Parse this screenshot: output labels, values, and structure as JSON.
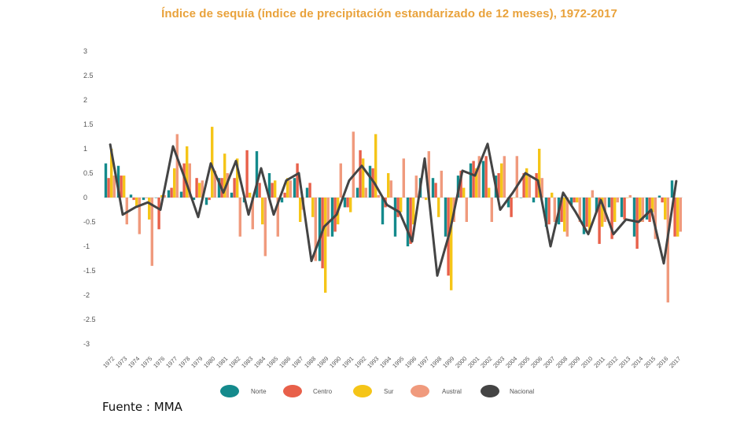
{
  "title": "Índice de sequía (índice de precipitación estandarizado de 12 meses), 1972-2017",
  "source_note": "Fuente : MMA",
  "chart_data": {
    "type": "bar",
    "title": "Índice de sequía (índice de precipitación estandarizado de 12 meses), 1972-2017",
    "xlabel": "",
    "ylabel": "",
    "ylim": [
      -3,
      3
    ],
    "yticks": [
      3,
      2.5,
      2,
      1.5,
      1,
      0.5,
      0,
      -0.5,
      -1,
      -1.5,
      -2,
      -2.5,
      -3
    ],
    "ytick_labels": [
      "3",
      "2.5",
      "2",
      "1.5",
      "1",
      "0.5",
      "0",
      "-0.5",
      "-1",
      "-1.5",
      "-2",
      "-2.5",
      "-3"
    ],
    "categories": [
      "1972",
      "1973",
      "1974",
      "1975",
      "1976",
      "1977",
      "1978",
      "1979",
      "1980",
      "1981",
      "1982",
      "1983",
      "1984",
      "1985",
      "1986",
      "1987",
      "1988",
      "1989",
      "1990",
      "1991",
      "1992",
      "1993",
      "1994",
      "1995",
      "1996",
      "1997",
      "1998",
      "1999",
      "2000",
      "2001",
      "2002",
      "2003",
      "2004",
      "2005",
      "2006",
      "2007",
      "2008",
      "2009",
      "2010",
      "2011",
      "2012",
      "2013",
      "2014",
      "2015",
      "2016",
      "2017"
    ],
    "legend_position": "bottom",
    "series": [
      {
        "name": "Norte",
        "type": "bar",
        "color": "#148a8c",
        "values": [
          0.7,
          0.65,
          0.06,
          -0.05,
          0.0,
          0.15,
          0.12,
          -0.05,
          -0.15,
          0.4,
          0.1,
          -0.1,
          0.95,
          0.5,
          -0.1,
          0.4,
          0.2,
          -1.3,
          -0.8,
          -0.2,
          0.2,
          0.65,
          -0.55,
          -0.8,
          -1.0,
          0.4,
          0.4,
          -0.8,
          0.45,
          0.7,
          0.75,
          0.45,
          -0.2,
          0.0,
          -0.1,
          -0.6,
          -0.55,
          -0.15,
          -0.75,
          -0.3,
          -0.2,
          -0.4,
          -0.8,
          -0.45,
          0.04,
          0.35
        ]
      },
      {
        "name": "Centro",
        "type": "bar",
        "color": "#e8604a",
        "values": [
          0.4,
          0.45,
          -0.05,
          0.0,
          -0.65,
          0.2,
          0.7,
          0.4,
          -0.05,
          0.4,
          0.4,
          0.97,
          0.3,
          0.3,
          0.1,
          0.7,
          0.3,
          -1.45,
          -0.7,
          -0.2,
          0.97,
          0.6,
          -0.2,
          -0.4,
          -0.95,
          0.0,
          0.3,
          -1.6,
          0.55,
          0.75,
          0.85,
          0.5,
          -0.4,
          0.5,
          0.5,
          -0.55,
          -0.5,
          -0.1,
          -0.6,
          -0.95,
          -0.85,
          -0.45,
          -1.05,
          -0.5,
          -0.1,
          -0.8
        ]
      },
      {
        "name": "Sur",
        "type": "bar",
        "color": "#f5c518",
        "values": [
          1.0,
          0.45,
          -0.2,
          -0.45,
          0.05,
          0.6,
          1.05,
          0.3,
          1.45,
          0.9,
          0.8,
          0.1,
          -0.55,
          0.35,
          0.4,
          -0.5,
          -0.4,
          -1.95,
          -0.55,
          -0.3,
          0.8,
          1.3,
          0.5,
          -0.3,
          -0.55,
          -0.05,
          -0.4,
          -1.9,
          0.2,
          0.6,
          0.2,
          0.7,
          0.0,
          0.6,
          1.0,
          0.1,
          -0.7,
          -0.1,
          -0.7,
          -0.6,
          -0.5,
          0.0,
          -0.5,
          -0.3,
          -0.45,
          -0.8
        ]
      },
      {
        "name": "Austral",
        "type": "bar",
        "color": "#f09a7d",
        "values": [
          0.45,
          -0.55,
          -0.75,
          -1.4,
          0.05,
          1.3,
          0.7,
          0.35,
          0.55,
          0.5,
          -0.8,
          -0.65,
          -1.2,
          -0.8,
          0.35,
          -0.25,
          -1.3,
          -0.8,
          0.7,
          1.35,
          0.2,
          0.05,
          0.35,
          0.8,
          0.45,
          0.95,
          0.55,
          -0.5,
          -0.5,
          0.85,
          -0.5,
          0.85,
          0.85,
          0.45,
          0.4,
          -0.5,
          -0.8,
          -0.5,
          0.15,
          -0.5,
          -0.1,
          0.05,
          -0.5,
          -0.85,
          -2.15,
          -0.7
        ]
      },
      {
        "name": "Nacional",
        "type": "line",
        "color": "#444444",
        "values": [
          1.1,
          -0.35,
          -0.2,
          -0.1,
          -0.25,
          1.05,
          0.35,
          -0.4,
          0.7,
          0.1,
          0.75,
          -0.35,
          0.6,
          -0.35,
          0.35,
          0.5,
          -1.3,
          -0.6,
          -0.35,
          0.35,
          0.65,
          0.3,
          -0.15,
          -0.3,
          -0.9,
          0.8,
          -1.6,
          -0.7,
          0.55,
          0.45,
          1.1,
          -0.25,
          0.1,
          0.5,
          0.35,
          -1.0,
          0.1,
          -0.3,
          -0.75,
          -0.05,
          -0.75,
          -0.45,
          -0.5,
          -0.25,
          -1.35,
          0.35
        ]
      }
    ]
  }
}
